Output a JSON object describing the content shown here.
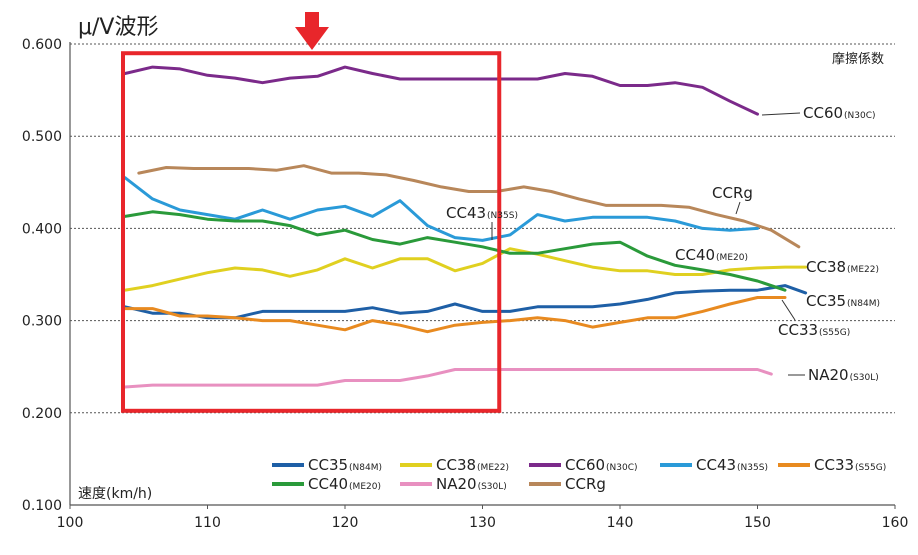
{
  "chart_data": {
    "type": "line",
    "title": "μ/V波形",
    "corner_label": "摩擦係数",
    "xlabel": "速度(km/h)",
    "ylabel": "",
    "xlim": [
      100,
      160
    ],
    "ylim": [
      0.1,
      0.6
    ],
    "x_ticks": [
      "100",
      "110",
      "120",
      "130",
      "140",
      "150",
      "160"
    ],
    "y_ticks": [
      "0.100",
      "0.200",
      "0.300",
      "0.400",
      "0.500",
      "0.600"
    ],
    "grid": true,
    "legend_position": "bottom",
    "highlight_box": {
      "x_range": [
        104,
        131
      ],
      "y_range": [
        0.2,
        0.59
      ],
      "color": "#e8262b"
    },
    "arrow_color": "#e8262b",
    "series": [
      {
        "key": "cc35",
        "name": "CC35",
        "grade": "(N84M)",
        "color": "#1e5fa6",
        "label": "CC35",
        "label_sub": "(N84M)",
        "x": [
          104,
          106,
          108,
          110,
          112,
          114,
          116,
          118,
          120,
          122,
          124,
          126,
          128,
          130,
          132,
          134,
          136,
          138,
          140,
          142,
          144,
          146,
          148,
          150,
          152,
          153.5
        ],
        "y": [
          0.315,
          0.308,
          0.308,
          0.303,
          0.303,
          0.31,
          0.31,
          0.31,
          0.31,
          0.314,
          0.308,
          0.31,
          0.318,
          0.31,
          0.31,
          0.315,
          0.315,
          0.315,
          0.318,
          0.323,
          0.33,
          0.332,
          0.333,
          0.333,
          0.338,
          0.33
        ]
      },
      {
        "key": "cc38",
        "name": "CC38",
        "grade": "(ME22)",
        "color": "#e0d020",
        "label": "CC38",
        "label_sub": "(ME22)",
        "x": [
          104,
          106,
          108,
          110,
          112,
          114,
          116,
          118,
          120,
          122,
          124,
          126,
          128,
          130,
          132,
          134,
          136,
          138,
          140,
          142,
          144,
          146,
          148,
          150,
          152,
          153.5
        ],
        "y": [
          0.333,
          0.338,
          0.345,
          0.352,
          0.357,
          0.355,
          0.348,
          0.355,
          0.367,
          0.357,
          0.367,
          0.367,
          0.354,
          0.362,
          0.378,
          0.372,
          0.365,
          0.358,
          0.354,
          0.354,
          0.35,
          0.35,
          0.355,
          0.357,
          0.358,
          0.358
        ]
      },
      {
        "key": "cc60",
        "name": "CC60",
        "grade": "(N30C)",
        "color": "#7b2a8a",
        "label": "CC60",
        "label_sub": "(N30C)",
        "x": [
          104,
          106,
          108,
          110,
          112,
          114,
          116,
          118,
          120,
          122,
          124,
          126,
          128,
          130,
          132,
          134,
          136,
          138,
          140,
          142,
          144,
          146,
          148,
          150
        ],
        "y": [
          0.568,
          0.575,
          0.573,
          0.566,
          0.563,
          0.558,
          0.563,
          0.565,
          0.575,
          0.568,
          0.562,
          0.562,
          0.562,
          0.562,
          0.562,
          0.562,
          0.568,
          0.565,
          0.555,
          0.555,
          0.558,
          0.553,
          0.538,
          0.524
        ]
      },
      {
        "key": "cc43",
        "name": "CC43",
        "grade": "(N35S)",
        "color": "#2a9ad8",
        "label": "CC43",
        "label_sub": "(N35S)",
        "x": [
          104,
          106,
          108,
          110,
          112,
          114,
          116,
          118,
          120,
          122,
          124,
          126,
          128,
          130,
          132,
          134,
          136,
          138,
          140,
          142,
          144,
          146,
          148,
          150
        ],
        "y": [
          0.455,
          0.432,
          0.42,
          0.415,
          0.41,
          0.42,
          0.41,
          0.42,
          0.424,
          0.413,
          0.43,
          0.403,
          0.39,
          0.387,
          0.393,
          0.415,
          0.408,
          0.412,
          0.412,
          0.412,
          0.408,
          0.4,
          0.398,
          0.4
        ]
      },
      {
        "key": "cc33",
        "name": "CC33",
        "grade": "(S55G)",
        "color": "#e88a20",
        "label": "CC33",
        "label_sub": "(S55G)",
        "x": [
          104,
          106,
          108,
          110,
          112,
          114,
          116,
          118,
          120,
          122,
          124,
          126,
          128,
          130,
          132,
          134,
          136,
          138,
          140,
          142,
          144,
          146,
          148,
          150,
          152
        ],
        "y": [
          0.313,
          0.313,
          0.305,
          0.305,
          0.303,
          0.3,
          0.3,
          0.295,
          0.29,
          0.3,
          0.295,
          0.288,
          0.295,
          0.298,
          0.3,
          0.303,
          0.3,
          0.293,
          0.298,
          0.303,
          0.303,
          0.31,
          0.318,
          0.325,
          0.325
        ]
      },
      {
        "key": "cc40",
        "name": "CC40",
        "grade": "(ME20)",
        "color": "#2a9a3a",
        "label": "CC40",
        "label_sub": "(ME20)",
        "x": [
          104,
          106,
          108,
          110,
          112,
          114,
          116,
          118,
          120,
          122,
          124,
          126,
          128,
          130,
          132,
          134,
          136,
          138,
          140,
          142,
          144,
          146,
          148,
          150,
          152
        ],
        "y": [
          0.413,
          0.418,
          0.415,
          0.41,
          0.408,
          0.408,
          0.403,
          0.393,
          0.398,
          0.388,
          0.383,
          0.39,
          0.385,
          0.38,
          0.373,
          0.373,
          0.378,
          0.383,
          0.385,
          0.37,
          0.36,
          0.355,
          0.35,
          0.343,
          0.333
        ]
      },
      {
        "key": "na20",
        "name": "NA20",
        "grade": "(S30L)",
        "color": "#e890c0",
        "label": "NA20",
        "label_sub": "(S30L)",
        "x": [
          104,
          106,
          108,
          110,
          112,
          114,
          116,
          118,
          120,
          122,
          124,
          126,
          128,
          130,
          132,
          134,
          136,
          138,
          140,
          142,
          144,
          146,
          148,
          150,
          151
        ],
        "y": [
          0.228,
          0.23,
          0.23,
          0.23,
          0.23,
          0.23,
          0.23,
          0.23,
          0.235,
          0.235,
          0.235,
          0.24,
          0.247,
          0.247,
          0.247,
          0.247,
          0.247,
          0.247,
          0.247,
          0.247,
          0.247,
          0.247,
          0.247,
          0.247,
          0.242
        ]
      },
      {
        "key": "ccrg",
        "name": "CCRg",
        "grade": "",
        "color": "#b8875a",
        "label": "CCRg",
        "label_sub": "",
        "x": [
          105,
          107,
          109,
          111,
          113,
          115,
          117,
          119,
          121,
          123,
          125,
          127,
          129,
          131,
          133,
          135,
          137,
          139,
          141,
          143,
          145,
          147,
          149,
          151,
          153
        ],
        "y": [
          0.46,
          0.466,
          0.465,
          0.465,
          0.465,
          0.463,
          0.468,
          0.46,
          0.46,
          0.458,
          0.452,
          0.445,
          0.44,
          0.44,
          0.445,
          0.44,
          0.432,
          0.425,
          0.425,
          0.425,
          0.423,
          0.415,
          0.408,
          0.398,
          0.38
        ]
      }
    ],
    "legend_rows": [
      [
        "cc35",
        "cc38",
        "cc60",
        "cc43",
        "cc33"
      ],
      [
        "cc40",
        "na20",
        "ccrg"
      ]
    ]
  }
}
